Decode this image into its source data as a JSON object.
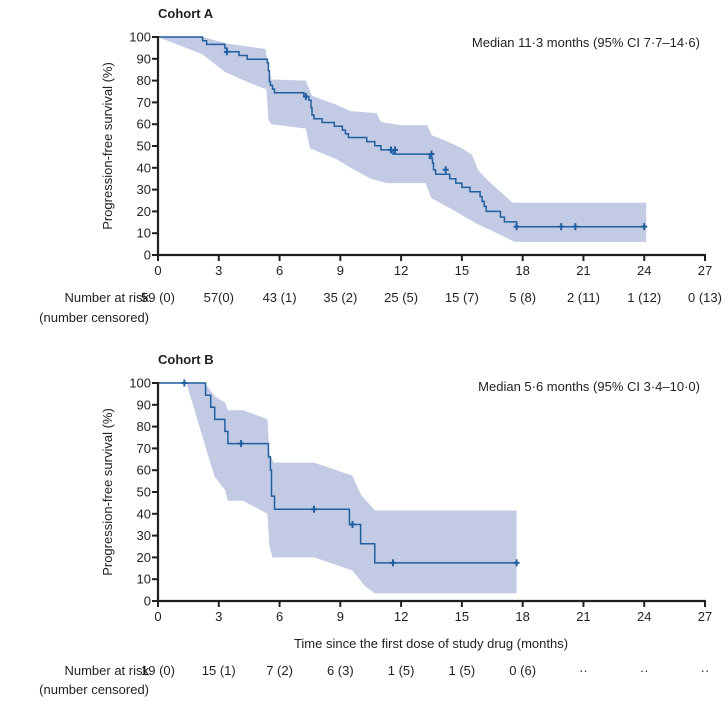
{
  "chart_data": [
    {
      "type": "line",
      "subtype": "kaplan-meier",
      "title": "Cohort A",
      "ylabel": "Progression-free survival (%)",
      "xlabel": "",
      "xlim": [
        0,
        27
      ],
      "ylim": [
        0,
        100
      ],
      "xticks": [
        0,
        3,
        6,
        9,
        12,
        15,
        18,
        21,
        24,
        27
      ],
      "yticks": [
        0,
        10,
        20,
        30,
        40,
        50,
        60,
        70,
        80,
        90,
        100
      ],
      "grid": false,
      "annotation": "Median 11·3 months (95% CI 7·7–14·6)",
      "colors": {
        "curve": "#1f5fa0",
        "ci_band": "#c3cbe4"
      },
      "series": [
        {
          "name": "Progression-free survival",
          "steps": [
            [
              0,
              100
            ],
            [
              2.2,
              98.3
            ],
            [
              2.4,
              96.6
            ],
            [
              3.3,
              94.9
            ],
            [
              3.4,
              93.2
            ],
            [
              4.0,
              91.5
            ],
            [
              4.4,
              89.8
            ],
            [
              5.4,
              88.1
            ],
            [
              5.45,
              84.6
            ],
            [
              5.5,
              79.5
            ],
            [
              5.55,
              77.8
            ],
            [
              5.65,
              76.1
            ],
            [
              5.75,
              74.4
            ],
            [
              7.2,
              72.7
            ],
            [
              7.45,
              71.0
            ],
            [
              7.55,
              67.6
            ],
            [
              7.6,
              64.2
            ],
            [
              7.7,
              62.5
            ],
            [
              8.1,
              60.8
            ],
            [
              8.7,
              59.1
            ],
            [
              9.1,
              57.3
            ],
            [
              9.25,
              55.6
            ],
            [
              9.4,
              53.9
            ],
            [
              10.3,
              52.0
            ],
            [
              10.7,
              50.1
            ],
            [
              11.0,
              48.2
            ],
            [
              11.6,
              46.3
            ],
            [
              13.4,
              44.3
            ],
            [
              13.55,
              42.2
            ],
            [
              13.6,
              39.1
            ],
            [
              13.7,
              37.0
            ],
            [
              14.4,
              35.0
            ],
            [
              14.7,
              33.0
            ],
            [
              15.0,
              31.0
            ],
            [
              15.4,
              29.0
            ],
            [
              15.9,
              26.8
            ],
            [
              16.0,
              24.6
            ],
            [
              16.1,
              22.3
            ],
            [
              16.2,
              20.0
            ],
            [
              16.9,
              17.4
            ],
            [
              17.1,
              15.2
            ],
            [
              17.7,
              13.0
            ],
            [
              24.1,
              13.0
            ]
          ],
          "censored": [
            [
              3.4,
              93.2
            ],
            [
              7.3,
              72.7
            ],
            [
              11.5,
              48.2
            ],
            [
              11.7,
              48.2
            ],
            [
              13.5,
              46.3
            ],
            [
              14.2,
              39.1
            ],
            [
              17.7,
              13.0
            ],
            [
              19.9,
              13.0
            ],
            [
              20.6,
              13.0
            ],
            [
              24.0,
              13.0
            ]
          ],
          "ci_upper": [
            [
              0,
              100
            ],
            [
              2.2,
              100
            ],
            [
              3.4,
              97
            ],
            [
              5.3,
              94.5
            ],
            [
              5.5,
              84
            ],
            [
              5.6,
              80.5
            ],
            [
              7.3,
              80
            ],
            [
              7.6,
              73
            ],
            [
              8.8,
              69
            ],
            [
              9.5,
              66
            ],
            [
              10.8,
              65
            ],
            [
              11.0,
              61
            ],
            [
              12.0,
              59.5
            ],
            [
              13.3,
              59.5
            ],
            [
              13.5,
              55
            ],
            [
              14.3,
              52
            ],
            [
              15.0,
              49
            ],
            [
              15.5,
              46
            ],
            [
              15.8,
              39
            ],
            [
              16.3,
              34
            ],
            [
              17.5,
              24
            ],
            [
              24.1,
              24
            ]
          ],
          "ci_lower": [
            [
              0,
              100
            ],
            [
              2.2,
              92
            ],
            [
              3.3,
              84
            ],
            [
              4.5,
              79
            ],
            [
              5.35,
              76
            ],
            [
              5.45,
              62
            ],
            [
              5.6,
              60
            ],
            [
              7.3,
              58
            ],
            [
              7.5,
              49
            ],
            [
              8.8,
              44
            ],
            [
              9.5,
              40
            ],
            [
              10.5,
              35
            ],
            [
              11.3,
              33
            ],
            [
              13.2,
              33
            ],
            [
              13.5,
              26
            ],
            [
              14.5,
              21
            ],
            [
              15.8,
              14
            ],
            [
              16.5,
              11
            ],
            [
              17.6,
              6
            ],
            [
              24.1,
              6
            ]
          ]
        }
      ],
      "risk_table": {
        "label_line1": "Number at risk",
        "label_line2": "(number censored)",
        "values": [
          "59 (0)",
          "57(0)",
          "43 (1)",
          "35 (2)",
          "25 (5)",
          "15 (7)",
          "5 (8)",
          "2 (11)",
          "1 (12)",
          "0 (13)"
        ]
      }
    },
    {
      "type": "line",
      "subtype": "kaplan-meier",
      "title": "Cohort B",
      "ylabel": "Progression-free survival (%)",
      "xlabel": "Time since the first dose of study drug (months)",
      "xlim": [
        0,
        27
      ],
      "ylim": [
        0,
        100
      ],
      "xticks": [
        0,
        3,
        6,
        9,
        12,
        15,
        18,
        21,
        24,
        27
      ],
      "yticks": [
        0,
        10,
        20,
        30,
        40,
        50,
        60,
        70,
        80,
        90,
        100
      ],
      "grid": false,
      "annotation": "Median 5·6 months (95% CI 3·4–10·0)",
      "colors": {
        "curve": "#1f5fa0",
        "ci_band": "#c3cbe4"
      },
      "series": [
        {
          "name": "Progression-free survival",
          "steps": [
            [
              0,
              100
            ],
            [
              2.35,
              94.4
            ],
            [
              2.6,
              88.9
            ],
            [
              2.8,
              83.3
            ],
            [
              3.3,
              77.8
            ],
            [
              3.45,
              72.2
            ],
            [
              5.45,
              66.1
            ],
            [
              5.55,
              60.1
            ],
            [
              5.6,
              48.1
            ],
            [
              5.75,
              42.1
            ],
            [
              9.45,
              35.1
            ],
            [
              10.0,
              26.3
            ],
            [
              10.7,
              17.5
            ],
            [
              17.7,
              17.5
            ]
          ],
          "censored": [
            [
              1.3,
              100
            ],
            [
              4.1,
              72.2
            ],
            [
              7.7,
              42.1
            ],
            [
              9.6,
              35.1
            ],
            [
              11.6,
              17.5
            ],
            [
              17.7,
              17.5
            ]
          ],
          "ci_upper": [
            [
              0,
              100
            ],
            [
              2.3,
              100
            ],
            [
              2.8,
              94
            ],
            [
              3.3,
              91
            ],
            [
              3.45,
              87.5
            ],
            [
              4.2,
              87.5
            ],
            [
              5.4,
              83.5
            ],
            [
              5.5,
              68
            ],
            [
              5.7,
              63.5
            ],
            [
              7.7,
              63.5
            ],
            [
              9.6,
              57.5
            ],
            [
              10.0,
              49
            ],
            [
              10.7,
              41.5
            ],
            [
              17.7,
              41.5
            ]
          ],
          "ci_lower": [
            [
              0,
              100
            ],
            [
              1.4,
              100
            ],
            [
              2.5,
              66
            ],
            [
              2.8,
              57
            ],
            [
              3.3,
              51
            ],
            [
              3.45,
              46
            ],
            [
              4.2,
              46
            ],
            [
              5.4,
              40
            ],
            [
              5.5,
              25
            ],
            [
              5.65,
              20
            ],
            [
              7.7,
              20
            ],
            [
              9.6,
              14
            ],
            [
              10.2,
              7
            ],
            [
              10.7,
              3.5
            ],
            [
              17.7,
              3.5
            ]
          ]
        }
      ],
      "risk_table": {
        "label_line1": "Number at risk",
        "label_line2": "(number censored)",
        "values": [
          "19 (0)",
          "15 (1)",
          "7 (2)",
          "6 (3)",
          "1 (5)",
          "1 (5)",
          "0 (6)",
          "··",
          "··",
          "··"
        ]
      }
    }
  ]
}
